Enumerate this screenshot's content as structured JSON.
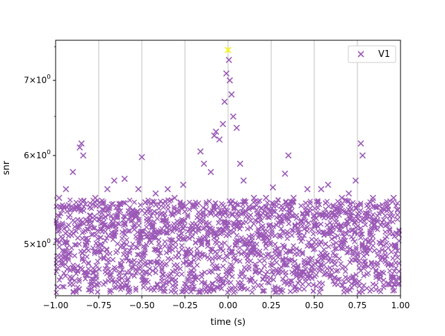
{
  "chart_data": {
    "type": "scatter",
    "title": "",
    "xlabel": "time (s)",
    "ylabel": "snr",
    "xlim": [
      -1.0,
      1.0
    ],
    "ylim": [
      4.5,
      7.6
    ],
    "yscale": "log",
    "grid": "vertical-major",
    "legend_position": "top-right",
    "marker": "x",
    "series_color": "#9b59b6",
    "highlight_color": "#ffff00",
    "x_ticks": [
      -1.0,
      -0.75,
      -0.5,
      -0.25,
      0.0,
      0.25,
      0.5,
      0.75,
      1.0
    ],
    "x_tick_labels": [
      "−1.00",
      "−0.75",
      "−0.50",
      "−0.25",
      "0.00",
      "0.25",
      "0.50",
      "0.75",
      "1.00"
    ],
    "y_ticks": [
      5,
      6,
      7
    ],
    "y_tick_labels": [
      {
        "mantissa": "5",
        "times": "×",
        "base": "10",
        "exp": "0"
      },
      {
        "mantissa": "6",
        "times": "×",
        "base": "10",
        "exp": "0"
      },
      {
        "mantissa": "7",
        "times": "×",
        "base": "10",
        "exp": "0"
      }
    ],
    "series": [
      {
        "name": "V1",
        "points": [
          {
            "x": -0.98,
            "y": 5.5
          },
          {
            "x": -0.96,
            "y": 5.2
          },
          {
            "x": -0.94,
            "y": 5.6
          },
          {
            "x": -0.92,
            "y": 4.9
          },
          {
            "x": -0.9,
            "y": 5.8
          },
          {
            "x": -0.88,
            "y": 5.4
          },
          {
            "x": -0.86,
            "y": 6.1
          },
          {
            "x": -0.85,
            "y": 6.15
          },
          {
            "x": -0.84,
            "y": 6.0
          },
          {
            "x": -0.82,
            "y": 4.7
          },
          {
            "x": -0.8,
            "y": 5.3
          },
          {
            "x": -0.77,
            "y": 5.5
          },
          {
            "x": -0.74,
            "y": 5.0
          },
          {
            "x": -0.7,
            "y": 5.6
          },
          {
            "x": -0.66,
            "y": 5.7
          },
          {
            "x": -0.62,
            "y": 4.8
          },
          {
            "x": -0.6,
            "y": 5.72
          },
          {
            "x": -0.56,
            "y": 5.3
          },
          {
            "x": -0.52,
            "y": 5.6
          },
          {
            "x": -0.5,
            "y": 5.98
          },
          {
            "x": -0.48,
            "y": 5.45
          },
          {
            "x": -0.44,
            "y": 5.1
          },
          {
            "x": -0.42,
            "y": 5.55
          },
          {
            "x": -0.38,
            "y": 4.7
          },
          {
            "x": -0.35,
            "y": 5.6
          },
          {
            "x": -0.31,
            "y": 5.5
          },
          {
            "x": -0.26,
            "y": 5.65
          },
          {
            "x": -0.23,
            "y": 4.8
          },
          {
            "x": -0.2,
            "y": 5.4
          },
          {
            "x": -0.16,
            "y": 6.05
          },
          {
            "x": -0.14,
            "y": 5.9
          },
          {
            "x": -0.12,
            "y": 5.2
          },
          {
            "x": -0.1,
            "y": 5.8
          },
          {
            "x": -0.08,
            "y": 6.25
          },
          {
            "x": -0.07,
            "y": 6.3
          },
          {
            "x": -0.05,
            "y": 6.2
          },
          {
            "x": -0.03,
            "y": 6.4
          },
          {
            "x": -0.02,
            "y": 6.7
          },
          {
            "x": -0.01,
            "y": 7.1
          },
          {
            "x": 0.0,
            "y": 7.45
          },
          {
            "x": 0.005,
            "y": 7.3
          },
          {
            "x": 0.01,
            "y": 7.0
          },
          {
            "x": 0.02,
            "y": 6.8
          },
          {
            "x": 0.03,
            "y": 6.5
          },
          {
            "x": 0.05,
            "y": 6.35
          },
          {
            "x": 0.07,
            "y": 5.9
          },
          {
            "x": 0.09,
            "y": 5.7
          },
          {
            "x": 0.12,
            "y": 5.4
          },
          {
            "x": 0.15,
            "y": 5.5
          },
          {
            "x": 0.18,
            "y": 4.9
          },
          {
            "x": 0.22,
            "y": 5.5
          },
          {
            "x": 0.26,
            "y": 5.62
          },
          {
            "x": 0.3,
            "y": 5.3
          },
          {
            "x": 0.33,
            "y": 5.78
          },
          {
            "x": 0.35,
            "y": 6.0
          },
          {
            "x": 0.38,
            "y": 5.5
          },
          {
            "x": 0.42,
            "y": 4.7
          },
          {
            "x": 0.46,
            "y": 5.6
          },
          {
            "x": 0.5,
            "y": 5.2
          },
          {
            "x": 0.54,
            "y": 5.6
          },
          {
            "x": 0.58,
            "y": 5.65
          },
          {
            "x": 0.62,
            "y": 4.8
          },
          {
            "x": 0.66,
            "y": 5.5
          },
          {
            "x": 0.7,
            "y": 5.55
          },
          {
            "x": 0.74,
            "y": 5.7
          },
          {
            "x": 0.77,
            "y": 6.15
          },
          {
            "x": 0.78,
            "y": 6.0
          },
          {
            "x": 0.8,
            "y": 5.3
          },
          {
            "x": 0.84,
            "y": 5.5
          },
          {
            "x": 0.88,
            "y": 4.7
          },
          {
            "x": 0.92,
            "y": 5.4
          },
          {
            "x": 0.96,
            "y": 5.5
          },
          {
            "x": 0.99,
            "y": 5.1
          }
        ]
      }
    ],
    "highlight_point": {
      "x": 0.0,
      "y": 7.45
    }
  }
}
